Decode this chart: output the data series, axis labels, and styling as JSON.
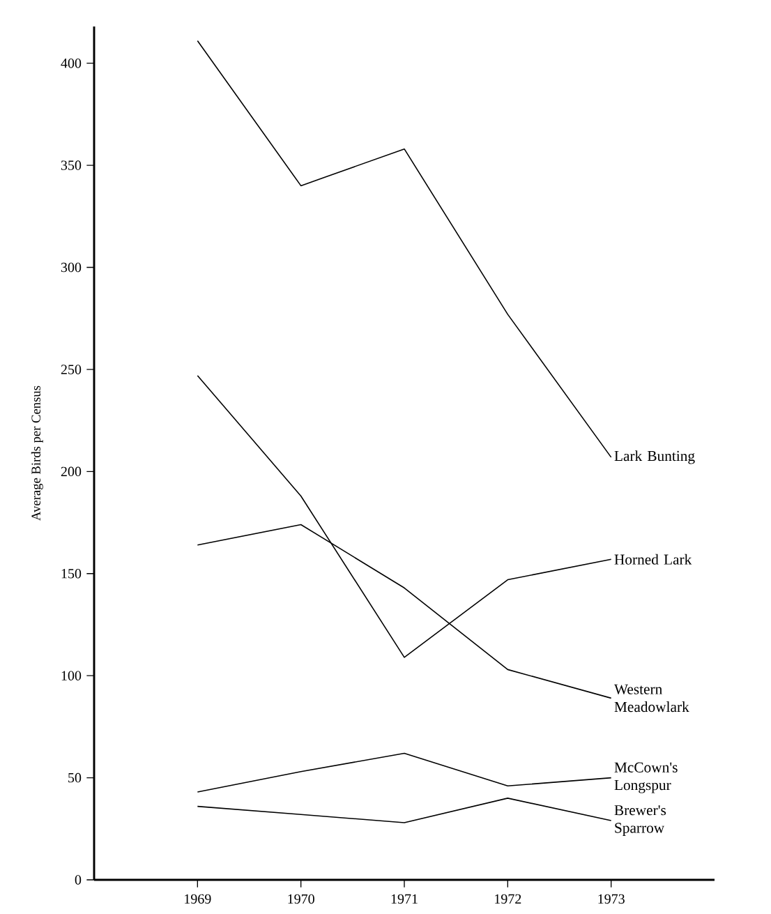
{
  "chart_data": {
    "type": "line",
    "ylabel": "Average Birds per Census",
    "x": [
      1969,
      1970,
      1971,
      1972,
      1973
    ],
    "xlim": [
      1968,
      1974
    ],
    "xticks": [
      1969,
      1970,
      1971,
      1972,
      1973
    ],
    "ylim": [
      0,
      418
    ],
    "yticks": [
      0,
      50,
      100,
      150,
      200,
      250,
      300,
      350,
      400
    ],
    "grid": false,
    "marker": "none",
    "line_style": "solid",
    "series": [
      {
        "name": "Lark Bunting",
        "color": "#000000",
        "values": [
          411,
          340,
          358,
          277,
          207
        ]
      },
      {
        "name": "Horned Lark",
        "color": "#000000",
        "values": [
          247,
          188,
          109,
          147,
          157
        ]
      },
      {
        "name": "Western Meadowlark",
        "color": "#000000",
        "values": [
          164,
          174,
          143,
          103,
          89
        ]
      },
      {
        "name": "McCown's Longspur",
        "color": "#000000",
        "values": [
          43,
          53,
          62,
          46,
          50
        ]
      },
      {
        "name": "Brewer's Sparrow",
        "color": "#000000",
        "values": [
          36,
          32,
          28,
          40,
          29
        ]
      }
    ]
  }
}
